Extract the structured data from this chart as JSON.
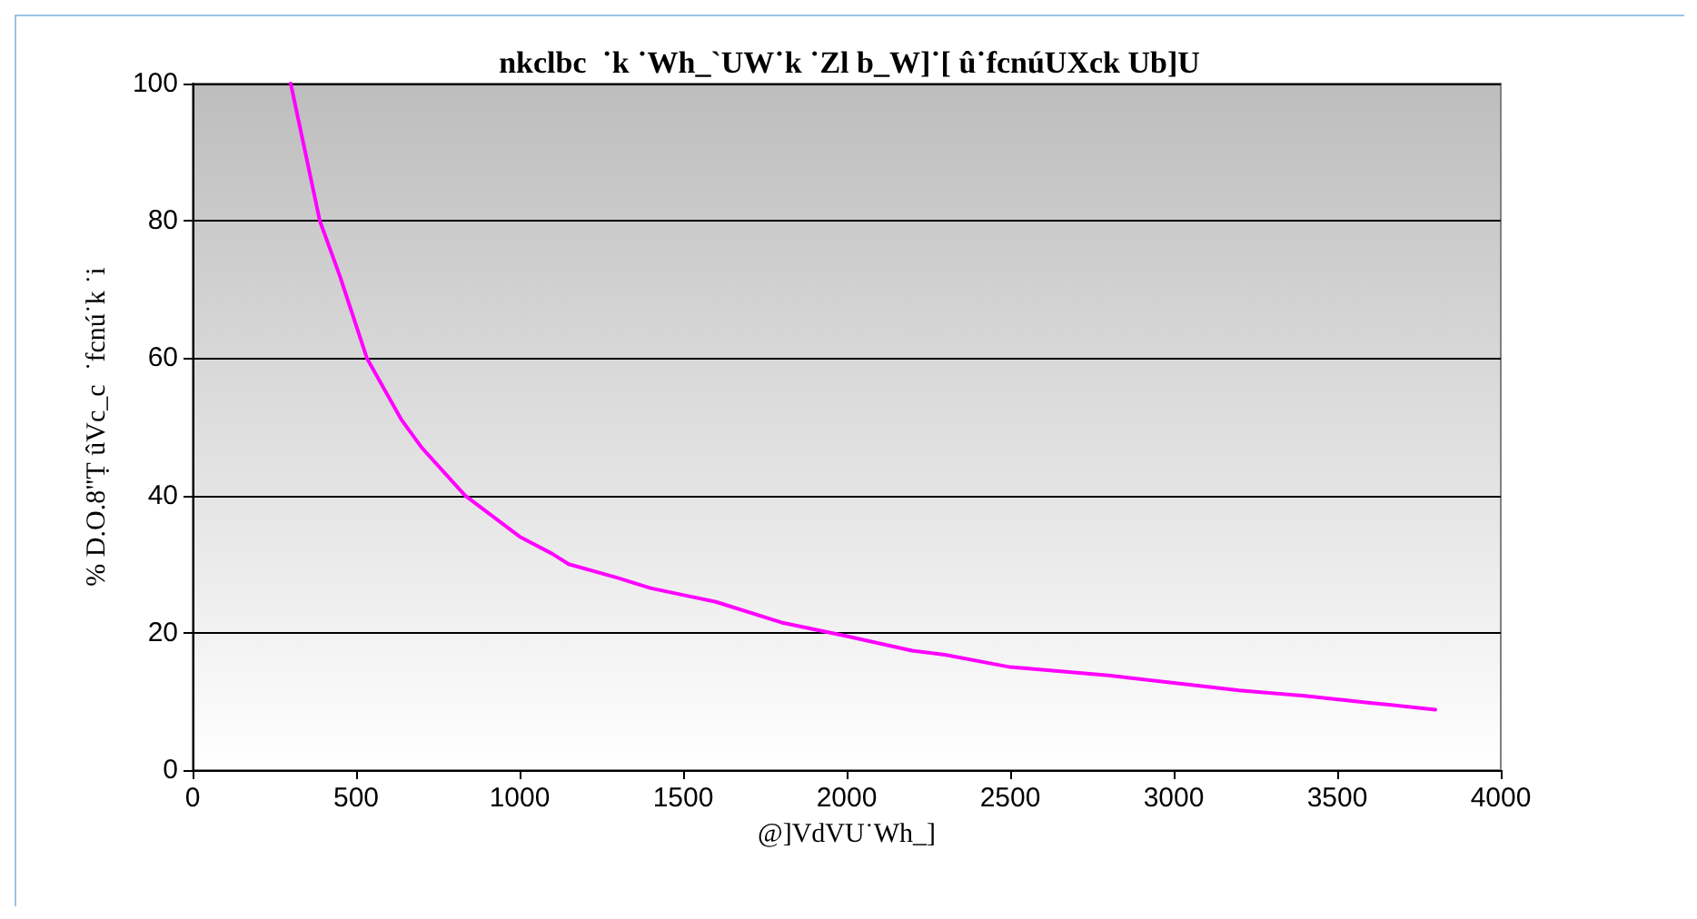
{
  "chart_data": {
    "type": "line",
    "title": "nkclbc  ˙k ˙Wh_`UW˙k ˙Zl b_W]˙[ û˙fcnúUXck Ub]U",
    "xlabel": "@]VdVU˙Wh_]",
    "ylabel": "% D.O.8\"Ṭ ûVc_c  ˙fcnú˙k ˙i",
    "x": [
      300,
      389,
      450,
      533,
      639,
      700,
      833,
      1000,
      1100,
      1150,
      1300,
      1400,
      1600,
      1800,
      2000,
      2200,
      2300,
      2500,
      2800,
      3000,
      3200,
      3400,
      3600,
      3800
    ],
    "series": [
      {
        "color": "#ff00ff",
        "values": [
          100,
          80,
          72,
          60,
          51,
          47,
          40,
          34,
          31.5,
          30,
          28,
          26.5,
          24.5,
          21.5,
          19.5,
          17.4,
          16.8,
          15,
          13.8,
          12.7,
          11.6,
          10.8,
          9.8,
          8.8
        ]
      }
    ],
    "xlim": [
      0,
      4000
    ],
    "xticks": [
      0,
      500,
      1000,
      1500,
      2000,
      2500,
      3000,
      3500,
      4000
    ],
    "ylim": [
      0,
      100
    ],
    "yticks": [
      0,
      20,
      40,
      60,
      80,
      100
    ],
    "grid": "y",
    "marker": "none",
    "line_style": "solid"
  }
}
